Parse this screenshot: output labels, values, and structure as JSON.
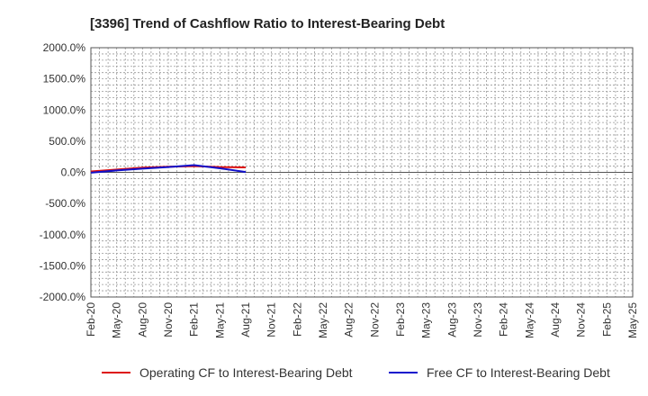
{
  "chart_data": {
    "type": "line",
    "title": "[3396]  Trend of Cashflow Ratio to Interest-Bearing Debt",
    "xlabel": "",
    "ylabel": "",
    "ylim": [
      -2000,
      2000
    ],
    "y_ticks": [
      "2000.0%",
      "1500.0%",
      "1000.0%",
      "500.0%",
      "0.0%",
      "-500.0%",
      "-1000.0%",
      "-1500.0%",
      "-2000.0%"
    ],
    "y_tick_values": [
      2000,
      1500,
      1000,
      500,
      0,
      -500,
      -1000,
      -1500,
      -2000
    ],
    "x_ticks": [
      "Feb-20",
      "May-20",
      "Aug-20",
      "Nov-20",
      "Feb-21",
      "May-21",
      "Aug-21",
      "Nov-21",
      "Feb-22",
      "May-22",
      "Aug-22",
      "Nov-22",
      "Feb-23",
      "May-23",
      "Aug-23",
      "Nov-23",
      "Feb-24",
      "May-24",
      "Aug-24",
      "Nov-24",
      "Feb-25",
      "May-25"
    ],
    "grid": true,
    "legend_position": "bottom",
    "series": [
      {
        "name": "Operating CF to Interest-Bearing Debt",
        "color": "#dd1111",
        "x": [
          "Feb-20",
          "May-20",
          "Aug-20",
          "Nov-20",
          "Feb-21",
          "May-21",
          "Aug-21"
        ],
        "values": [
          15,
          45,
          75,
          90,
          100,
          85,
          80
        ]
      },
      {
        "name": "Free CF to Interest-Bearing Debt",
        "color": "#1111cc",
        "x": [
          "Feb-20",
          "May-20",
          "Aug-20",
          "Nov-20",
          "Feb-21",
          "May-21",
          "Aug-21"
        ],
        "values": [
          -5,
          30,
          60,
          85,
          115,
          65,
          5
        ]
      }
    ]
  }
}
